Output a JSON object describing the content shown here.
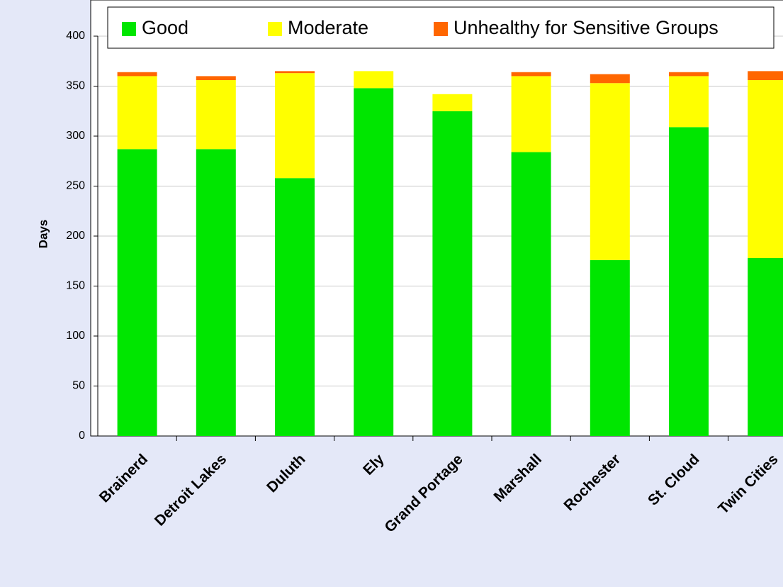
{
  "chart_data": {
    "type": "stacked_bar",
    "y_label": "Days",
    "categories": [
      "Brainerd",
      "Detroit Lakes",
      "Duluth",
      "Ely",
      "Grand Portage",
      "Marshall",
      "Rochester",
      "St. Cloud",
      "Twin Cities"
    ],
    "series": [
      {
        "name": "Good",
        "color": "#00e600",
        "values": [
          287,
          287,
          258,
          348,
          325,
          284,
          176,
          309,
          178
        ]
      },
      {
        "name": "Moderate",
        "color": "#ffff00",
        "values": [
          73,
          69,
          105,
          17,
          17,
          76,
          177,
          51,
          178
        ]
      },
      {
        "name": "Unhealthy for Sensitive Groups",
        "color": "#ff6600",
        "values": [
          4,
          4,
          2,
          0,
          0,
          4,
          9,
          4,
          9
        ]
      }
    ],
    "ylim": [
      0,
      400
    ],
    "yticks": [
      0,
      50,
      100,
      150,
      200,
      250,
      300,
      350,
      400
    ],
    "grid": true,
    "legend": "top"
  }
}
